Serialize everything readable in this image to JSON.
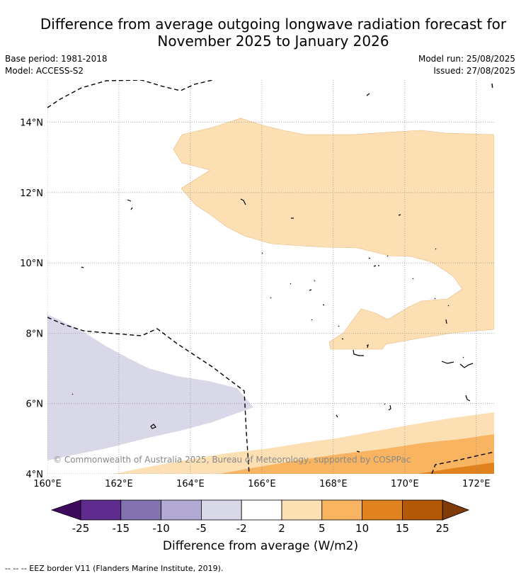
{
  "header": {
    "title_line1": "Difference from average outgoing longwave radiation forecast for",
    "title_line2": "November 2025 to January 2026",
    "base_period": "Base period: 1981-2018",
    "model": "Model: ACCESS-S2",
    "model_run": "Model run: 25/08/2025",
    "issued": "Issued: 27/08/2025"
  },
  "map": {
    "lon_labels": [
      "160°E",
      "162°E",
      "164°E",
      "166°E",
      "168°E",
      "170°E",
      "172°E"
    ],
    "lat_labels": [
      "14°N",
      "12°N",
      "10°N",
      "8°N",
      "6°N",
      "4°N"
    ],
    "lon_range": [
      160,
      172.5
    ],
    "lat_range": [
      4,
      15.2
    ],
    "copyright": "© Commonwealth of Australia 2025, Bureau of Meteorology, supported by COSPPac",
    "colors": {
      "neg_2_5": "#d8d8e8",
      "pos_2_5": "#fddfb4",
      "pos_5_10": "#f8b461",
      "pos_10_15": "#e0821d",
      "pos_15_25": "#b35807"
    }
  },
  "colorbar": {
    "ticks": [
      "-25",
      "-15",
      "-10",
      "-5",
      "-2",
      "2",
      "5",
      "10",
      "15",
      "25"
    ],
    "colors": [
      "#3e0a5e",
      "#5e2a8e",
      "#8273b0",
      "#b1a9d2",
      "#d8d8e8",
      "#ffffff",
      "#fddfb4",
      "#f8b461",
      "#e0821d",
      "#b35807",
      "#7f3b08"
    ],
    "label": "Difference from average (W/m2)"
  },
  "footer": {
    "legend_text": "--  --  -- EEZ border V11 (Flanders Marine Institute, 2019)."
  }
}
